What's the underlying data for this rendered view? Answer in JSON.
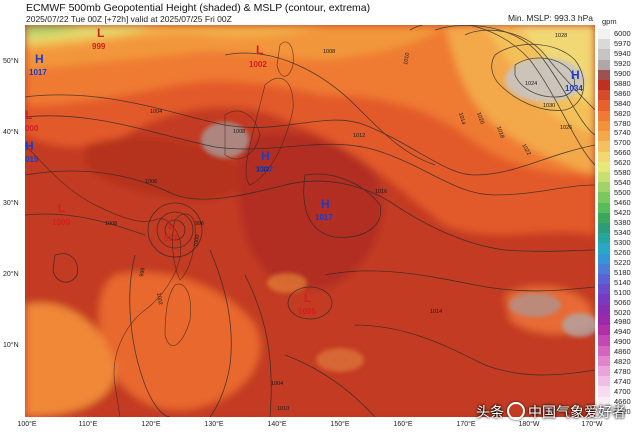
{
  "header": {
    "title": "ECMWF 500mb Geopotential Height (shaded) & MSLP (contour, extrema)",
    "subtitle": "2025/07/22 Tue 00Z [+72h] valid at 2025/07/25 Fri 00Z",
    "min_mslp": "Min. MSLP: 993.3 hPa"
  },
  "axes": {
    "lat_labels": [
      "50°N",
      "40°N",
      "30°N",
      "20°N",
      "10°N"
    ],
    "lon_labels": [
      "100°E",
      "110°E",
      "120°E",
      "130°E",
      "140°E",
      "150°E",
      "160°E",
      "170°E",
      "180°W",
      "170°W"
    ]
  },
  "colorbar": {
    "unit": "gpm",
    "labels": [
      "6000",
      "5970",
      "5940",
      "5920",
      "5900",
      "5880",
      "5860",
      "5840",
      "5820",
      "5780",
      "5740",
      "5700",
      "5660",
      "5620",
      "5580",
      "5540",
      "5500",
      "5460",
      "5420",
      "5380",
      "5340",
      "5300",
      "5260",
      "5220",
      "5180",
      "5140",
      "5100",
      "5060",
      "5020",
      "4980",
      "4940",
      "4900",
      "4860",
      "4820",
      "4780",
      "4740",
      "4700",
      "4660",
      "4620"
    ],
    "colors": [
      "#f2f2f2",
      "#d9d9d9",
      "#c4c4c4",
      "#b0a6a6",
      "#a05050",
      "#c03020",
      "#d84a2c",
      "#e8602e",
      "#f07a34",
      "#f2923a",
      "#f3a84a",
      "#f4c060",
      "#f2d870",
      "#e8e87a",
      "#c8e070",
      "#a0d468",
      "#7cc860",
      "#58bc58",
      "#3aa85c",
      "#2e9c78",
      "#26a4a0",
      "#28a8c4",
      "#3496d6",
      "#4a7cd8",
      "#5a62d4",
      "#6a4ccc",
      "#7a3ac0",
      "#8a2eb2",
      "#9c2aa8",
      "#b030a8",
      "#c448b4",
      "#d464c0",
      "#e084cc",
      "#eaa4da",
      "#f0c0e4",
      "#f6dcee",
      "#fbeef6",
      "#ffffff"
    ],
    "accent_colors": {
      "high": "#1a3cc8",
      "low": "#d21e1e",
      "contour": "#2a2a2a"
    }
  },
  "extrema": {
    "highs": [
      {
        "label": "H",
        "value": "1017"
      },
      {
        "label": "H",
        "value": "015"
      },
      {
        "label": "H",
        "value": "1017"
      },
      {
        "label": "H",
        "value": "1017"
      },
      {
        "label": "H",
        "value": "1034"
      }
    ],
    "lows": [
      {
        "label": "L",
        "value": "999"
      },
      {
        "label": "L",
        "value": "1002"
      },
      {
        "label": "L",
        "value": "000"
      },
      {
        "label": "L",
        "value": "1000"
      },
      {
        "label": "L",
        "value": "993"
      },
      {
        "label": "L",
        "value": "1005"
      }
    ]
  },
  "isobar_labels": [
    "1004",
    "1008",
    "1008",
    "1012",
    "1016",
    "1020",
    "1024",
    "1028",
    "1030",
    "1026",
    "1022",
    "1018",
    "1014",
    "1010",
    "1006",
    "1002",
    "998",
    "996",
    "1000",
    "1004",
    "1010",
    "1014",
    "1012",
    "1008"
  ],
  "watermark": {
    "text_left": "头条",
    "text_right": "中国气象爱好者",
    "icon": "camera-icon"
  }
}
